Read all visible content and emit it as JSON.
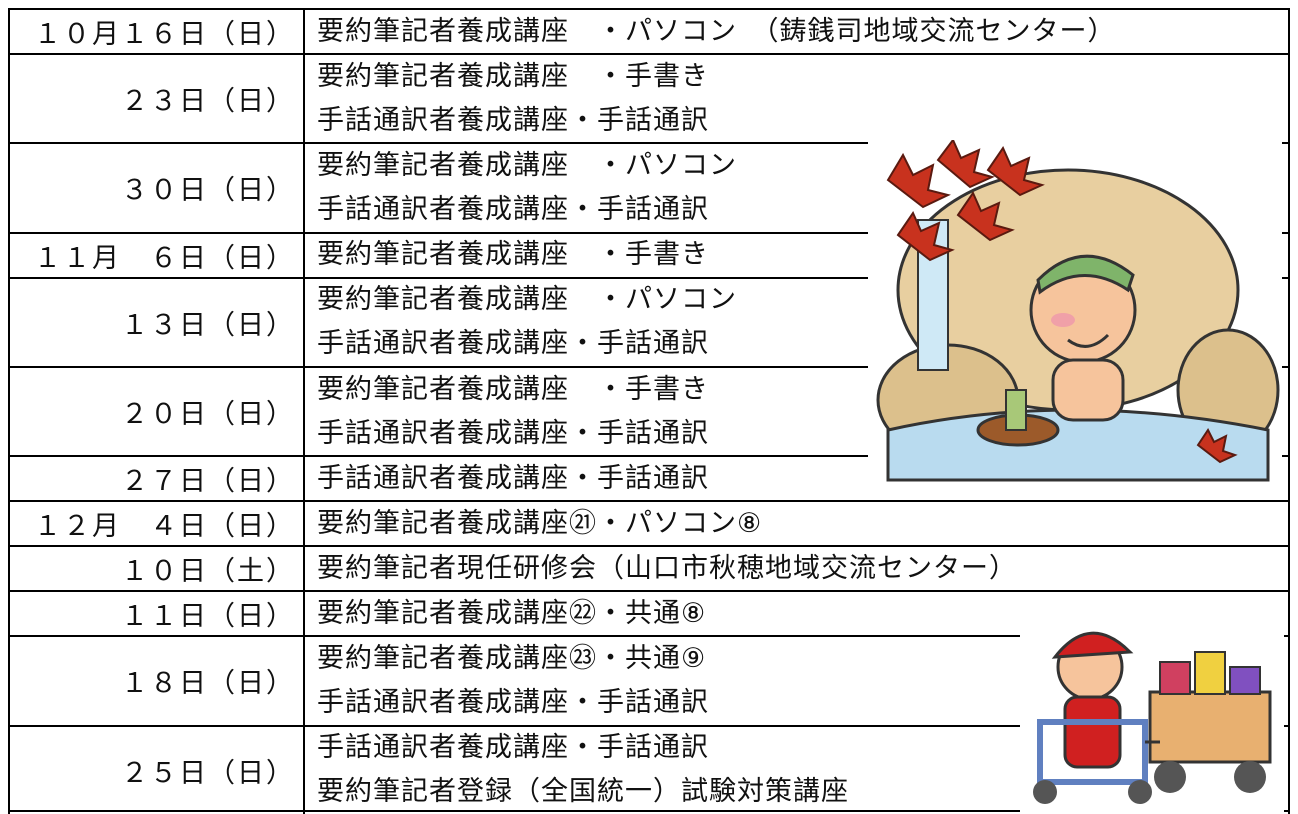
{
  "rows": [
    {
      "date": "１０月１６日（日）",
      "lines": [
        "要約筆記者養成講座　・パソコン　（鋳銭司地域交流センター）"
      ]
    },
    {
      "date": "２３日（日）",
      "lines": [
        "要約筆記者養成講座　・手書き",
        "手話通訳者養成講座・手話通訳"
      ]
    },
    {
      "date": "３０日（日）",
      "lines": [
        "要約筆記者養成講座　・パソコン",
        "手話通訳者養成講座・手話通訳"
      ]
    },
    {
      "date": "１１月　６日（日）",
      "lines": [
        "要約筆記者養成講座　・手書き"
      ]
    },
    {
      "date": "１３日（日）",
      "lines": [
        "要約筆記者養成講座　・パソコン",
        "手話通訳者養成講座・手話通訳"
      ]
    },
    {
      "date": "２０日（日）",
      "lines": [
        "要約筆記者養成講座　・手書き",
        "手話通訳者養成講座・手話通訳"
      ]
    },
    {
      "date": "２７日（日）",
      "lines": [
        "手話通訳者養成講座・手話通訳"
      ]
    },
    {
      "date": "１２月　４日（日）",
      "lines": [
        "要約筆記者養成講座㉑・パソコン⑧"
      ]
    },
    {
      "date": "１０日（土）",
      "lines": [
        "要約筆記者現任研修会（山口市秋穂地域交流センター）"
      ]
    },
    {
      "date": "１１日（日）",
      "lines": [
        "要約筆記者養成講座㉒・共通⑧"
      ]
    },
    {
      "date": "１８日（日）",
      "lines": [
        "要約筆記者養成講座㉓・共通⑨",
        "手話通訳者養成講座・手話通訳"
      ]
    },
    {
      "date": "２５日（日）",
      "lines": [
        "手話通訳者養成講座・手話通訳",
        "要約筆記者登録（全国統一）試験対策講座"
      ]
    }
  ]
}
